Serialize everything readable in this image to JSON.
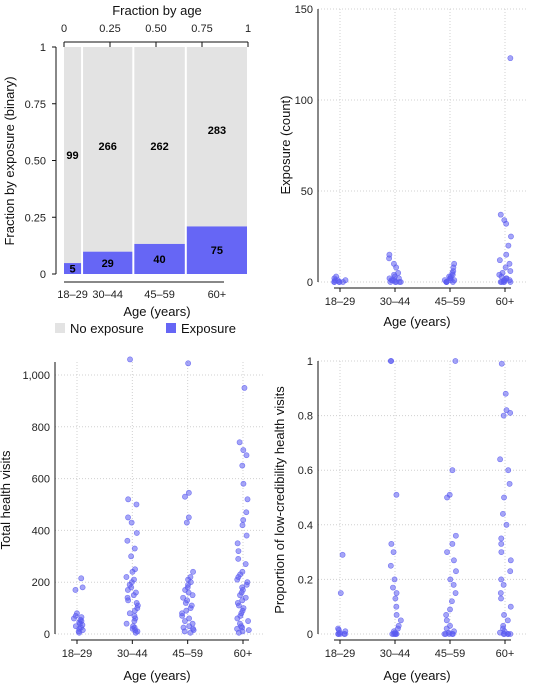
{
  "colors": {
    "exposure": "#6666f5",
    "no_exposure": "#e3e3e3",
    "grid": "#d0d0d0",
    "axis": "#111111",
    "point": "#5b5bf0"
  },
  "legend": {
    "no_exposure": "No exposure",
    "exposure": "Exposure"
  },
  "chart_data": [
    {
      "type": "mosaic",
      "top_xlabel": "Fraction by age",
      "top_ticks": [
        "0",
        "0.25",
        "0.50",
        "0.75",
        "1"
      ],
      "ylabel": "Fraction by exposure (binary)",
      "yticks": [
        "0",
        "0.25",
        "0.50",
        "0.75",
        "1"
      ],
      "xlabel": "Age (years)",
      "categories": [
        "18–29",
        "30–44",
        "45–59",
        "60+"
      ],
      "series": [
        {
          "name": "No exposure",
          "values": [
            99,
            266,
            262,
            283
          ]
        },
        {
          "name": "Exposure",
          "values": [
            5,
            29,
            40,
            75
          ]
        }
      ]
    },
    {
      "type": "scatter",
      "ylabel": "Exposure (count)",
      "xlabel": "Age (years)",
      "categories": [
        "18–29",
        "30–44",
        "45–59",
        "60+"
      ],
      "ylim": [
        0,
        150
      ],
      "yticks": [
        "0",
        "50",
        "100",
        "150"
      ],
      "grid": true,
      "points": [
        {
          "x": "18–29",
          "y": [
            0,
            0,
            0,
            0,
            0,
            1,
            1,
            1,
            2,
            3
          ]
        },
        {
          "x": "30–44",
          "y": [
            0,
            0,
            0,
            0,
            0,
            1,
            1,
            1,
            2,
            2,
            3,
            4,
            5,
            8,
            10,
            13,
            15
          ]
        },
        {
          "x": "45–59",
          "y": [
            0,
            0,
            0,
            0,
            0,
            1,
            1,
            1,
            2,
            2,
            3,
            3,
            4,
            5,
            6,
            8,
            10
          ]
        },
        {
          "x": "60+",
          "y": [
            0,
            0,
            0,
            0,
            0,
            1,
            1,
            1,
            2,
            2,
            3,
            4,
            5,
            6,
            8,
            10,
            12,
            15,
            20,
            25,
            32,
            34,
            37,
            123
          ]
        }
      ]
    },
    {
      "type": "scatter",
      "ylabel": "Total health visits",
      "xlabel": "Age (years)",
      "categories": [
        "18–29",
        "30–44",
        "45–59",
        "60+"
      ],
      "ylim": [
        0,
        1050
      ],
      "yticks": [
        "0",
        "200",
        "400",
        "600",
        "800",
        "1,000"
      ],
      "grid": true,
      "points": [
        {
          "x": "18–29",
          "y": [
            5,
            10,
            15,
            20,
            25,
            30,
            35,
            40,
            45,
            50,
            55,
            60,
            65,
            70,
            80,
            170,
            180,
            215
          ]
        },
        {
          "x": "30–44",
          "y": [
            5,
            10,
            15,
            20,
            25,
            30,
            40,
            50,
            60,
            70,
            80,
            90,
            100,
            110,
            120,
            130,
            140,
            150,
            160,
            170,
            180,
            190,
            200,
            210,
            220,
            240,
            250,
            300,
            330,
            360,
            390,
            430,
            450,
            500,
            520,
            1060
          ]
        },
        {
          "x": "45–59",
          "y": [
            5,
            10,
            15,
            20,
            25,
            30,
            40,
            50,
            60,
            70,
            80,
            90,
            100,
            110,
            120,
            130,
            140,
            150,
            160,
            170,
            180,
            190,
            200,
            210,
            220,
            240,
            430,
            450,
            530,
            545,
            1045
          ]
        },
        {
          "x": "60+",
          "y": [
            5,
            10,
            15,
            20,
            25,
            30,
            40,
            50,
            60,
            70,
            80,
            90,
            100,
            110,
            120,
            130,
            140,
            150,
            160,
            170,
            180,
            190,
            200,
            210,
            220,
            230,
            240,
            270,
            290,
            320,
            350,
            380,
            420,
            440,
            470,
            520,
            580,
            650,
            690,
            710,
            740,
            950
          ]
        }
      ]
    },
    {
      "type": "scatter",
      "ylabel": "Proportion of low-credibility health visits",
      "xlabel": "Age (years)",
      "categories": [
        "18–29",
        "30–44",
        "45–59",
        "60+"
      ],
      "ylim": [
        0,
        1
      ],
      "yticks": [
        "0",
        "0.2",
        "0.4",
        "0.6",
        "0.8",
        "1"
      ],
      "grid": true,
      "points": [
        {
          "x": "18–29",
          "y": [
            0,
            0,
            0,
            0,
            0,
            0.005,
            0.01,
            0.015,
            0.02,
            0.15,
            0.29
          ]
        },
        {
          "x": "30–44",
          "y": [
            0,
            0,
            0,
            0,
            0,
            0.005,
            0.01,
            0.02,
            0.03,
            0.05,
            0.07,
            0.1,
            0.13,
            0.15,
            0.17,
            0.2,
            0.25,
            0.3,
            0.33,
            0.51,
            1.0,
            1.0
          ]
        },
        {
          "x": "45–59",
          "y": [
            0,
            0,
            0,
            0,
            0,
            0.005,
            0.01,
            0.02,
            0.03,
            0.05,
            0.07,
            0.09,
            0.12,
            0.15,
            0.18,
            0.2,
            0.23,
            0.27,
            0.3,
            0.33,
            0.36,
            0.5,
            0.51,
            0.6,
            1.0
          ]
        },
        {
          "x": "60+",
          "y": [
            0,
            0,
            0,
            0,
            0,
            0.005,
            0.01,
            0.02,
            0.03,
            0.05,
            0.07,
            0.1,
            0.13,
            0.15,
            0.18,
            0.2,
            0.23,
            0.27,
            0.3,
            0.33,
            0.35,
            0.4,
            0.44,
            0.5,
            0.55,
            0.6,
            0.64,
            0.8,
            0.81,
            0.82,
            0.88,
            0.99
          ]
        }
      ]
    }
  ]
}
